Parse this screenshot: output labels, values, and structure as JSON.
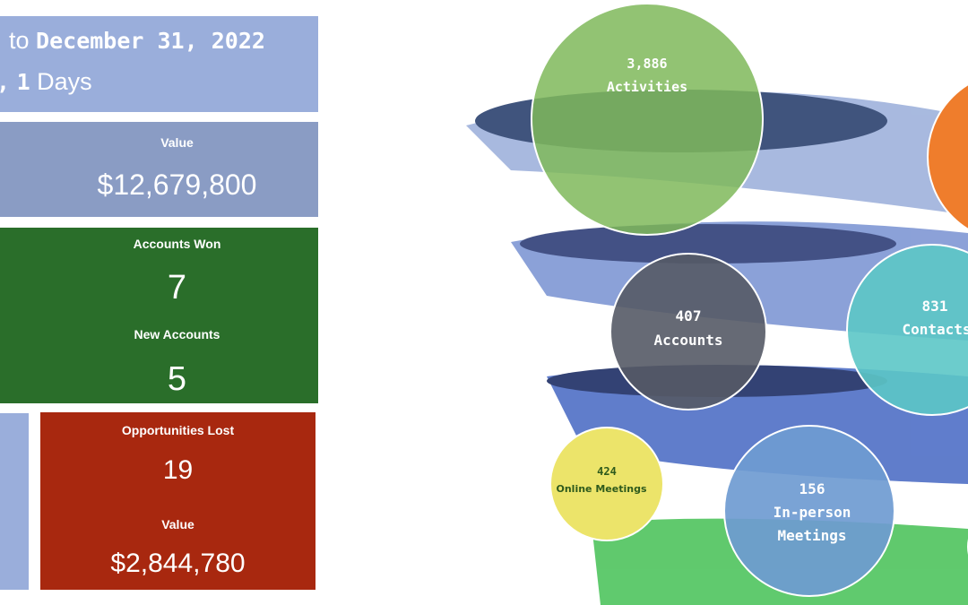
{
  "header": {
    "line1": {
      "prefix": "to",
      "date": "December 31, 2022"
    },
    "line2": {
      "comma": ",",
      "count": "1",
      "unit": "Days"
    }
  },
  "tiles": {
    "value": {
      "label": "Value",
      "amount": "$12,679,800"
    },
    "accounts": {
      "won_label": "Accounts Won",
      "won": "7",
      "new_label": "New Accounts",
      "new": "5"
    },
    "lost": {
      "label": "Opportunities Lost",
      "count": "19",
      "value_label": "Value",
      "value": "$2,844,780"
    }
  },
  "bubbles": [
    {
      "value": "3,886",
      "label": [
        "Activities"
      ]
    },
    {
      "value": "407",
      "label": [
        "Accounts"
      ]
    },
    {
      "value": "831",
      "label": [
        "Contacts"
      ]
    },
    {
      "value": "424",
      "label": [
        "Online Meetings"
      ]
    },
    {
      "value": "156",
      "label": [
        "In-person",
        "Meetings"
      ]
    }
  ]
}
